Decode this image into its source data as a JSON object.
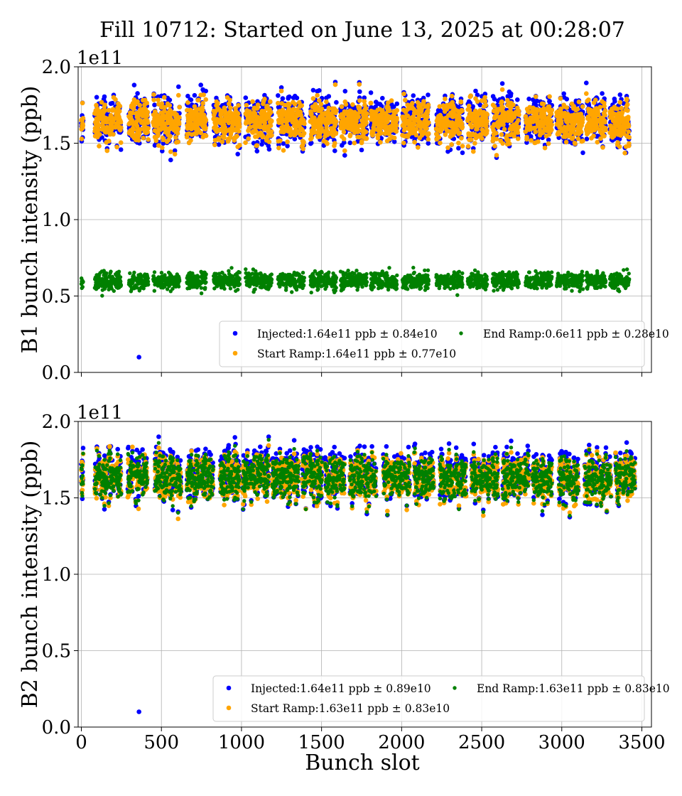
{
  "figure": {
    "title": "Fill 10712: Started on June 13, 2025 at 00:28:07",
    "xlabel": "Bunch slot"
  },
  "colors": {
    "injected": "#0000ff",
    "start_ramp": "#ffa500",
    "end_ramp": "#008000",
    "grid": "#b0b0b0",
    "axis": "#000000"
  },
  "chart_data": [
    {
      "type": "scatter",
      "panel": "B1",
      "ylabel": "B1 bunch intensity (ppb)",
      "y_exponent_label": "1e11",
      "xlim": [
        -20,
        3560
      ],
      "ylim": [
        0.0,
        2.0
      ],
      "xticks": [
        0,
        500,
        1000,
        1500,
        2000,
        2500,
        3000,
        3500
      ],
      "yticks": [
        0.0,
        0.5,
        1.0,
        1.5,
        2.0
      ],
      "grid": true,
      "legend_position": "lower-right",
      "legend": [
        {
          "key": "injected",
          "label": "Injected:1.64e11 ppb ± 0.84e10"
        },
        {
          "key": "start_ramp",
          "label": "Start Ramp:1.64e11 ppb ± 0.77e10"
        },
        {
          "key": "end_ramp",
          "label": "End Ramp:0.6e11 ppb ± 0.28e10"
        }
      ],
      "series": [
        {
          "key": "injected",
          "mean": 1.64,
          "spread": 0.084,
          "outliers": [
            [
              360,
              0.1
            ]
          ]
        },
        {
          "key": "start_ramp",
          "mean": 1.64,
          "spread": 0.077
        },
        {
          "key": "end_ramp",
          "mean": 0.6,
          "spread": 0.028
        }
      ]
    },
    {
      "type": "scatter",
      "panel": "B2",
      "ylabel": "B2 bunch intensity (ppb)",
      "y_exponent_label": "1e11",
      "xlim": [
        -20,
        3560
      ],
      "ylim": [
        0.0,
        2.0
      ],
      "xticks": [
        0,
        500,
        1000,
        1500,
        2000,
        2500,
        3000,
        3500
      ],
      "yticks": [
        0.0,
        0.5,
        1.0,
        1.5,
        2.0
      ],
      "grid": true,
      "legend_position": "lower-right",
      "legend": [
        {
          "key": "injected",
          "label": "Injected:1.64e11 ppb ± 0.89e10"
        },
        {
          "key": "start_ramp",
          "label": "Start Ramp:1.63e11 ppb ± 0.83e10"
        },
        {
          "key": "end_ramp",
          "label": "End Ramp:1.63e11 ppb ± 0.83e10"
        }
      ],
      "series": [
        {
          "key": "injected",
          "mean": 1.64,
          "spread": 0.089,
          "outliers": [
            [
              360,
              0.1
            ]
          ]
        },
        {
          "key": "start_ramp",
          "mean": 1.63,
          "spread": 0.083
        },
        {
          "key": "end_ramp",
          "mean": 1.63,
          "spread": 0.083
        }
      ]
    }
  ]
}
